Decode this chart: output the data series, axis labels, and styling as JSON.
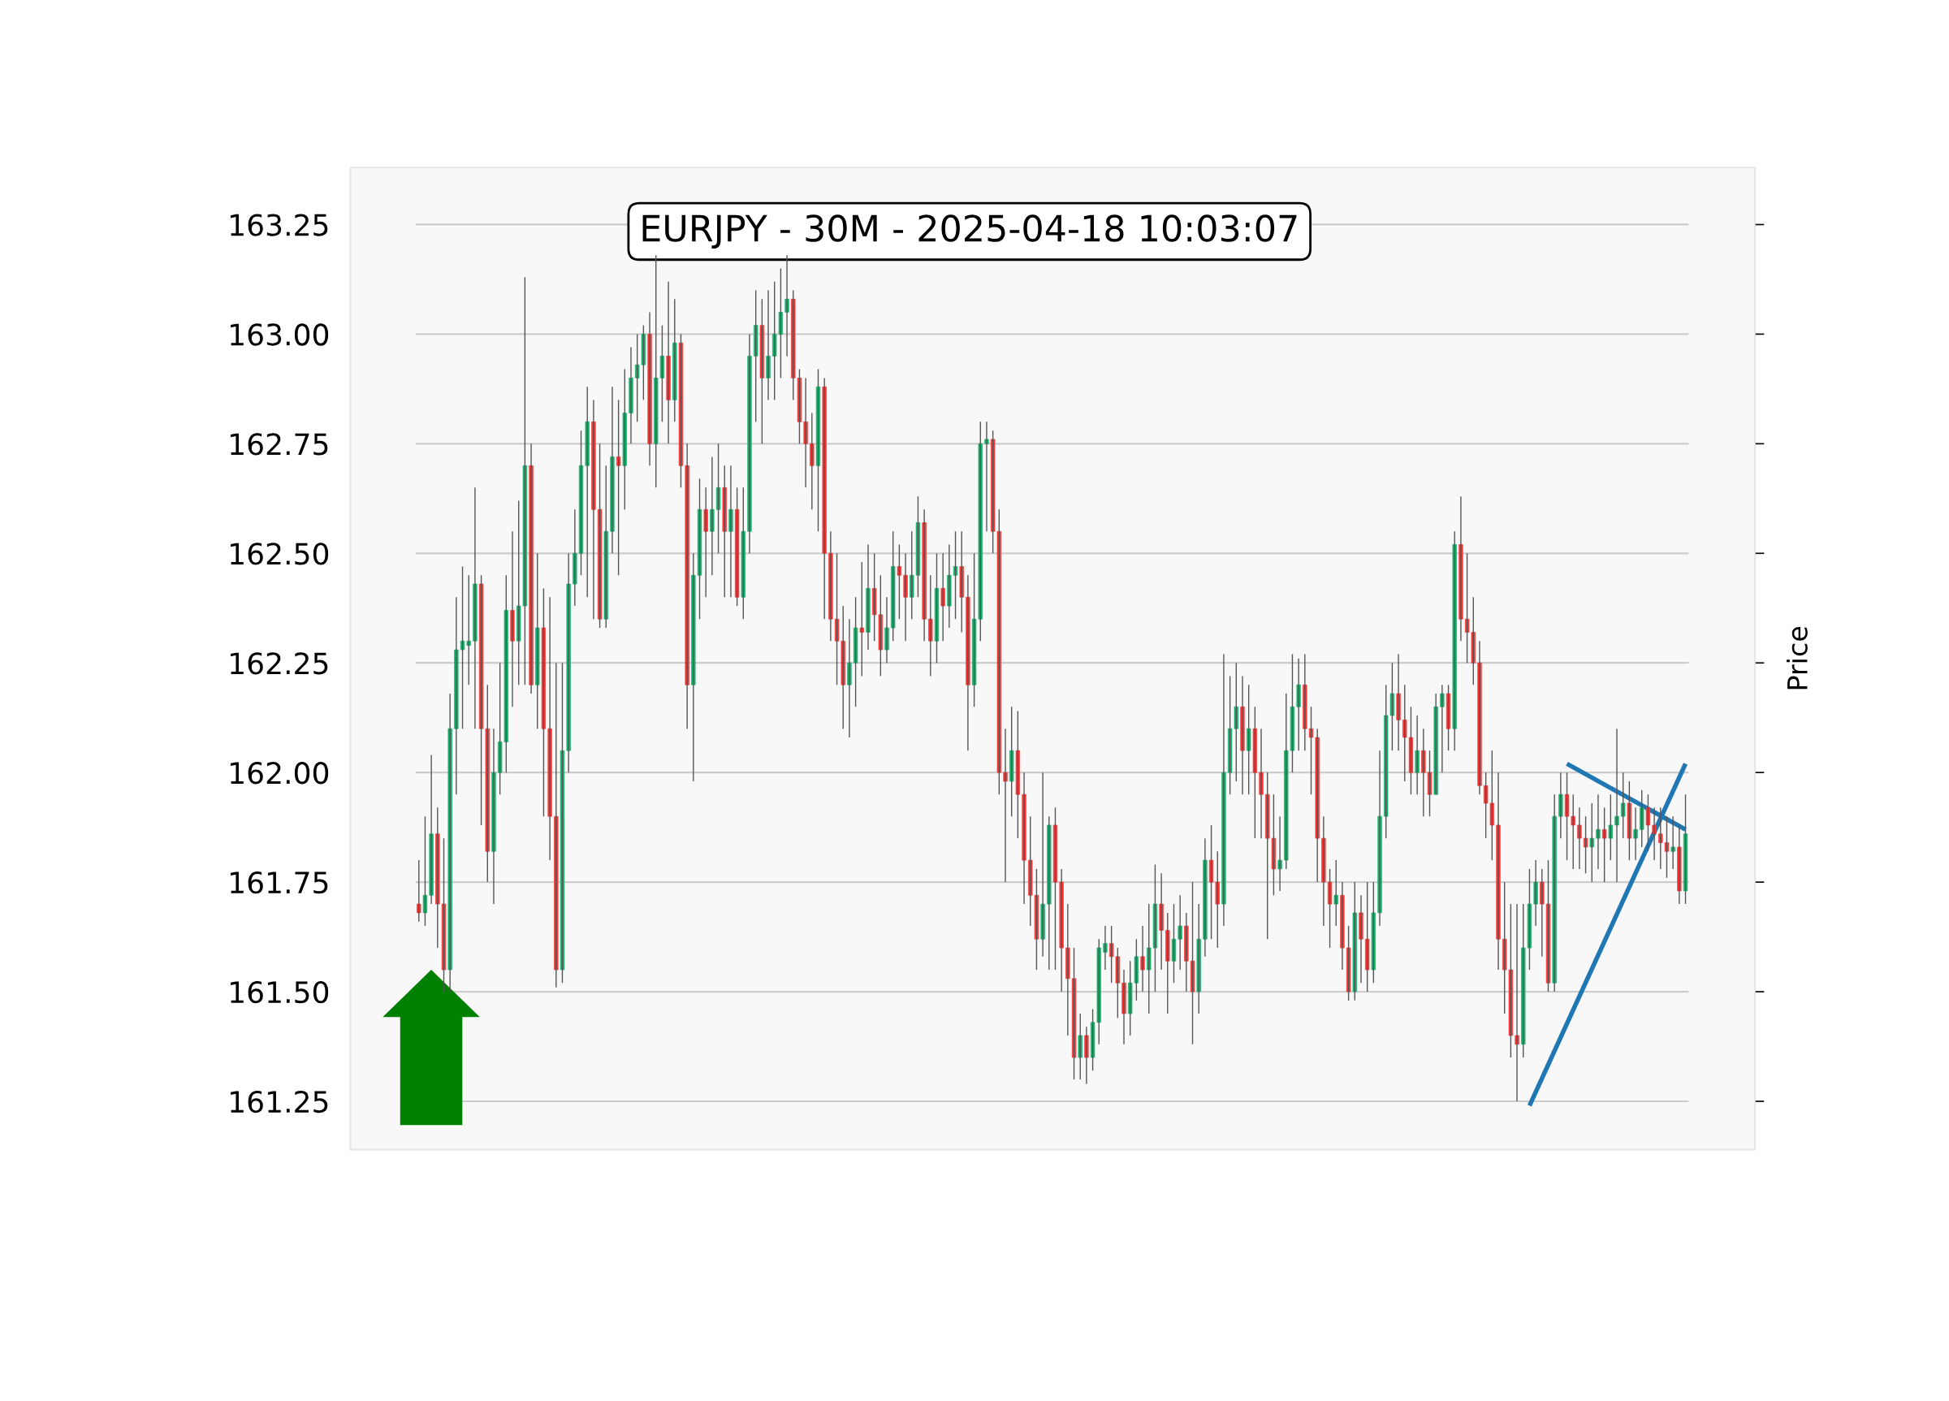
{
  "chart_data": {
    "type": "candlestick",
    "title": "EURJPY - 30M - 2025-04-18 10:03:07",
    "ylabel": "Price",
    "ylim": [
      161.14,
      163.38
    ],
    "yticks": [
      {
        "value": 161.25,
        "label": "161.25"
      },
      {
        "value": 161.5,
        "label": "161.50"
      },
      {
        "value": 161.75,
        "label": "161.75"
      },
      {
        "value": 162.0,
        "label": "162.00"
      },
      {
        "value": 162.25,
        "label": "162.25"
      },
      {
        "value": 162.5,
        "label": "162.50"
      },
      {
        "value": 162.75,
        "label": "162.75"
      },
      {
        "value": 163.0,
        "label": "163.00"
      },
      {
        "value": 163.25,
        "label": "163.25"
      }
    ],
    "grid": "y",
    "tick_labels": "y",
    "colors": [
      "#ff3333",
      "#12b36b",
      "#12b36b",
      "#ff3333",
      "#ff3333",
      "#12b36b",
      "#12b36b",
      "#12b36b",
      "#12b36b",
      "#12b36b",
      "#ff3333",
      "#ff3333",
      "#12b36b",
      "#12b36b",
      "#12b36b",
      "#ff3333",
      "#12b36b",
      "#12b36b",
      "#ff3333",
      "#12b36b",
      "#ff3333",
      "#ff3333",
      "#ff3333",
      "#12b36b",
      "#12b36b",
      "#12b36b",
      "#12b36b",
      "#12b36b",
      "#ff3333",
      "#ff3333",
      "#12b36b",
      "#12b36b",
      "#ff3333",
      "#12b36b",
      "#12b36b",
      "#12b36b",
      "#12b36b",
      "#ff3333",
      "#12b36b",
      "#12b36b",
      "#ff3333",
      "#12b36b",
      "#ff3333",
      "#ff3333",
      "#12b36b",
      "#12b36b",
      "#ff3333",
      "#12b36b",
      "#12b36b",
      "#ff3333",
      "#12b36b",
      "#ff3333",
      "#12b36b",
      "#12b36b",
      "#12b36b",
      "#ff3333",
      "#12b36b",
      "#12b36b",
      "#12b36b",
      "#12b36b",
      "#ff3333",
      "#ff3333",
      "#ff3333",
      "#ff3333",
      "#12b36b",
      "#ff3333",
      "#ff3333",
      "#ff3333",
      "#ff3333",
      "#12b36b",
      "#12b36b",
      "#ff3333",
      "#12b36b",
      "#ff3333",
      "#ff3333",
      "#12b36b",
      "#12b36b",
      "#ff3333",
      "#ff3333",
      "#12b36b",
      "#12b36b",
      "#ff3333",
      "#ff3333",
      "#12b36b",
      "#ff3333",
      "#12b36b",
      "#12b36b",
      "#ff3333",
      "#ff3333",
      "#12b36b",
      "#12b36b",
      "#12b36b",
      "#ff3333",
      "#ff3333",
      "#ff3333",
      "#12b36b",
      "#ff3333",
      "#ff3333",
      "#ff3333",
      "#ff3333",
      "#12b36b",
      "#12b36b",
      "#ff3333",
      "#ff3333",
      "#ff3333",
      "#ff3333",
      "#12b36b",
      "#ff3333",
      "#12b36b",
      "#12b36b",
      "#12b36b",
      "#ff3333",
      "#ff3333",
      "#ff3333",
      "#12b36b",
      "#12b36b",
      "#ff3333",
      "#12b36b",
      "#12b36b",
      "#ff3333",
      "#ff3333",
      "#12b36b",
      "#12b36b",
      "#ff3333",
      "#ff3333",
      "#12b36b",
      "#12b36b",
      "#ff3333",
      "#ff3333",
      "#12b36b",
      "#12b36b",
      "#12b36b",
      "#ff3333",
      "#12b36b",
      "#ff3333",
      "#ff3333",
      "#ff3333",
      "#ff3333",
      "#12b36b",
      "#12b36b",
      "#12b36b",
      "#12b36b",
      "#ff3333",
      "#ff3333",
      "#ff3333",
      "#ff3333",
      "#ff3333",
      "#12b36b",
      "#ff3333",
      "#ff3333",
      "#12b36b",
      "#ff3333",
      "#ff3333",
      "#12b36b",
      "#12b36b",
      "#12b36b",
      "#12b36b",
      "#ff3333",
      "#ff3333",
      "#ff3333",
      "#12b36b",
      "#ff3333",
      "#ff3333",
      "#12b36b",
      "#12b36b",
      "#ff3333",
      "#12b36b",
      "#ff3333",
      "#ff3333",
      "#ff3333",
      "#ff3333",
      "#ff3333",
      "#ff3333",
      "#ff3333",
      "#ff3333",
      "#ff3333",
      "#ff3333",
      "#12b36b",
      "#12b36b",
      "#12b36b",
      "#ff3333",
      "#ff3333",
      "#12b36b",
      "#12b36b",
      "#ff3333",
      "#ff3333",
      "#ff3333",
      "#ff3333",
      "#12b36b",
      "#12b36b",
      "#ff3333",
      "#12b36b",
      "#12b36b",
      "#12b36b",
      "#ff3333",
      "#12b36b",
      "#12b36b",
      "#ff3333",
      "#ff3333",
      "#ff3333",
      "#ff3333",
      "#12b36b",
      "#ff3333",
      "#12b36b"
    ],
    "categories": [
      null,
      null,
      null,
      null,
      null,
      null,
      null,
      null,
      null,
      null,
      null,
      null,
      null,
      null,
      null,
      null,
      null,
      null,
      null,
      null,
      null,
      null,
      null,
      null,
      null,
      null,
      null,
      null,
      null,
      null,
      null,
      null,
      null,
      null,
      null,
      null,
      null,
      null,
      null,
      null,
      null,
      null,
      null,
      null,
      null,
      null,
      null,
      null,
      null,
      null,
      null,
      null,
      null,
      null,
      null,
      null,
      null,
      null,
      null,
      null,
      null,
      null,
      null,
      null,
      null,
      null,
      null,
      null,
      null,
      null,
      null,
      null,
      null,
      null,
      null,
      null,
      null,
      null,
      null,
      null,
      null,
      null,
      null,
      null,
      null,
      null,
      null,
      null,
      null,
      null,
      null,
      null,
      null,
      null,
      null,
      null,
      null,
      null,
      null,
      null,
      null,
      null,
      null,
      null,
      null,
      null,
      null,
      null,
      null,
      null,
      null,
      null,
      null,
      null,
      null,
      null,
      null,
      null,
      null,
      null,
      null,
      null,
      null,
      null,
      null,
      null,
      null,
      null,
      null,
      null,
      null,
      null,
      null,
      null,
      null,
      null,
      null,
      null,
      null,
      null,
      null,
      null,
      null,
      null,
      null,
      null,
      null,
      null,
      null,
      null,
      null,
      null,
      null,
      null,
      null,
      null,
      null,
      null,
      null,
      null,
      null,
      null,
      null,
      null,
      null,
      null,
      null,
      null,
      null,
      null,
      null,
      null,
      null,
      null,
      null,
      null,
      null,
      null,
      null,
      null,
      null,
      null,
      null,
      null,
      null,
      null,
      null,
      null,
      null,
      null,
      null,
      null,
      null,
      null,
      null,
      null,
      null,
      null,
      null,
      null,
      null,
      null,
      null,
      null
    ],
    "ohlc": [
      [
        161.7,
        161.8,
        161.66,
        161.68
      ],
      [
        161.68,
        161.9,
        161.65,
        161.72
      ],
      [
        161.72,
        162.04,
        161.7,
        161.86
      ],
      [
        161.86,
        161.92,
        161.6,
        161.7
      ],
      [
        161.7,
        161.85,
        161.5,
        161.55
      ],
      [
        161.55,
        162.18,
        161.5,
        162.1
      ],
      [
        162.1,
        162.4,
        161.95,
        162.28
      ],
      [
        162.28,
        162.47,
        162.1,
        162.3
      ],
      [
        162.29,
        162.45,
        162.2,
        162.3
      ],
      [
        162.3,
        162.65,
        162.1,
        162.43
      ],
      [
        162.43,
        162.45,
        161.88,
        162.1
      ],
      [
        162.1,
        162.2,
        161.75,
        161.82
      ],
      [
        161.82,
        162.1,
        161.7,
        162.0
      ],
      [
        162.0,
        162.25,
        161.95,
        162.07
      ],
      [
        162.07,
        162.45,
        162.0,
        162.37
      ],
      [
        162.37,
        162.55,
        162.15,
        162.3
      ],
      [
        162.3,
        162.62,
        162.2,
        162.38
      ],
      [
        162.38,
        163.13,
        162.2,
        162.7
      ],
      [
        162.7,
        162.75,
        162.18,
        162.2
      ],
      [
        162.2,
        162.5,
        162.1,
        162.33
      ],
      [
        162.33,
        162.42,
        161.9,
        162.1
      ],
      [
        162.1,
        162.4,
        161.8,
        161.9
      ],
      [
        161.9,
        162.25,
        161.51,
        161.55
      ],
      [
        161.55,
        162.25,
        161.52,
        162.05
      ],
      [
        162.05,
        162.5,
        162.0,
        162.43
      ],
      [
        162.43,
        162.6,
        162.38,
        162.5
      ],
      [
        162.5,
        162.78,
        162.45,
        162.7
      ],
      [
        162.7,
        162.88,
        162.4,
        162.8
      ],
      [
        162.8,
        162.85,
        162.35,
        162.6
      ],
      [
        162.6,
        162.75,
        162.33,
        162.35
      ],
      [
        162.35,
        162.7,
        162.33,
        162.55
      ],
      [
        162.55,
        162.88,
        162.5,
        162.72
      ],
      [
        162.72,
        162.85,
        162.45,
        162.7
      ],
      [
        162.7,
        162.92,
        162.6,
        162.82
      ],
      [
        162.82,
        162.97,
        162.75,
        162.9
      ],
      [
        162.9,
        163.0,
        162.8,
        162.93
      ],
      [
        162.93,
        163.02,
        162.85,
        163.0
      ],
      [
        163.0,
        163.05,
        162.7,
        162.75
      ],
      [
        162.75,
        163.18,
        162.65,
        162.9
      ],
      [
        162.9,
        163.02,
        162.8,
        162.95
      ],
      [
        162.95,
        163.12,
        162.75,
        162.85
      ],
      [
        162.85,
        163.08,
        162.8,
        162.98
      ],
      [
        162.98,
        163.0,
        162.65,
        162.7
      ],
      [
        162.7,
        162.75,
        162.1,
        162.2
      ],
      [
        162.2,
        162.5,
        161.98,
        162.45
      ],
      [
        162.45,
        162.67,
        162.35,
        162.6
      ],
      [
        162.6,
        162.65,
        162.4,
        162.55
      ],
      [
        162.55,
        162.72,
        162.45,
        162.6
      ],
      [
        162.6,
        162.75,
        162.5,
        162.65
      ],
      [
        162.65,
        162.7,
        162.4,
        162.55
      ],
      [
        162.55,
        162.7,
        162.4,
        162.6
      ],
      [
        162.6,
        162.65,
        162.38,
        162.4
      ],
      [
        162.4,
        162.65,
        162.35,
        162.55
      ],
      [
        162.55,
        163.0,
        162.5,
        162.95
      ],
      [
        162.95,
        163.1,
        162.8,
        163.02
      ],
      [
        163.02,
        163.08,
        162.75,
        162.9
      ],
      [
        162.9,
        163.1,
        162.85,
        162.95
      ],
      [
        162.95,
        163.12,
        162.85,
        163.0
      ],
      [
        163.0,
        163.15,
        162.9,
        163.05
      ],
      [
        163.05,
        163.18,
        162.95,
        163.08
      ],
      [
        163.08,
        163.1,
        162.85,
        162.9
      ],
      [
        162.9,
        162.92,
        162.75,
        162.8
      ],
      [
        162.8,
        162.9,
        162.65,
        162.75
      ],
      [
        162.75,
        162.82,
        162.6,
        162.7
      ],
      [
        162.7,
        162.92,
        162.55,
        162.88
      ],
      [
        162.88,
        162.9,
        162.35,
        162.5
      ],
      [
        162.5,
        162.55,
        162.3,
        162.35
      ],
      [
        162.35,
        162.5,
        162.2,
        162.3
      ],
      [
        162.3,
        162.38,
        162.1,
        162.2
      ],
      [
        162.2,
        162.35,
        162.08,
        162.25
      ],
      [
        162.25,
        162.4,
        162.15,
        162.33
      ],
      [
        162.33,
        162.48,
        162.22,
        162.32
      ],
      [
        162.32,
        162.52,
        162.28,
        162.42
      ],
      [
        162.42,
        162.5,
        162.3,
        162.36
      ],
      [
        162.36,
        162.45,
        162.22,
        162.28
      ],
      [
        162.28,
        162.4,
        162.25,
        162.33
      ],
      [
        162.33,
        162.55,
        162.3,
        162.47
      ],
      [
        162.47,
        162.52,
        162.35,
        162.45
      ],
      [
        162.45,
        162.5,
        162.3,
        162.4
      ],
      [
        162.4,
        162.55,
        162.35,
        162.45
      ],
      [
        162.45,
        162.63,
        162.4,
        162.57
      ],
      [
        162.57,
        162.6,
        162.3,
        162.35
      ],
      [
        162.35,
        162.45,
        162.22,
        162.3
      ],
      [
        162.3,
        162.5,
        162.25,
        162.42
      ],
      [
        162.42,
        162.5,
        162.3,
        162.38
      ],
      [
        162.38,
        162.52,
        162.33,
        162.45
      ],
      [
        162.45,
        162.55,
        162.35,
        162.47
      ],
      [
        162.47,
        162.55,
        162.32,
        162.4
      ],
      [
        162.4,
        162.45,
        162.05,
        162.2
      ],
      [
        162.2,
        162.5,
        162.15,
        162.35
      ],
      [
        162.35,
        162.8,
        162.3,
        162.75
      ],
      [
        162.75,
        162.8,
        162.55,
        162.76
      ],
      [
        162.76,
        162.78,
        162.5,
        162.55
      ],
      [
        162.55,
        162.6,
        161.95,
        162.0
      ],
      [
        162.0,
        162.1,
        161.75,
        161.98
      ],
      [
        161.98,
        162.15,
        161.9,
        162.05
      ],
      [
        162.05,
        162.14,
        161.85,
        161.95
      ],
      [
        161.95,
        162.0,
        161.7,
        161.8
      ],
      [
        161.8,
        161.9,
        161.65,
        161.72
      ],
      [
        161.72,
        161.78,
        161.55,
        161.62
      ],
      [
        161.62,
        162.0,
        161.58,
        161.7
      ],
      [
        161.7,
        161.9,
        161.55,
        161.88
      ],
      [
        161.88,
        161.92,
        161.55,
        161.75
      ],
      [
        161.75,
        161.78,
        161.5,
        161.6
      ],
      [
        161.6,
        161.7,
        161.4,
        161.53
      ],
      [
        161.53,
        161.6,
        161.3,
        161.35
      ],
      [
        161.35,
        161.45,
        161.3,
        161.4
      ],
      [
        161.4,
        161.42,
        161.29,
        161.35
      ],
      [
        161.35,
        161.46,
        161.32,
        161.43
      ],
      [
        161.43,
        161.62,
        161.38,
        161.6
      ],
      [
        161.59,
        161.65,
        161.55,
        161.61
      ],
      [
        161.61,
        161.65,
        161.52,
        161.58
      ],
      [
        161.58,
        161.6,
        161.44,
        161.52
      ],
      [
        161.52,
        161.55,
        161.38,
        161.45
      ],
      [
        161.45,
        161.57,
        161.4,
        161.52
      ],
      [
        161.52,
        161.62,
        161.48,
        161.58
      ],
      [
        161.58,
        161.65,
        161.5,
        161.55
      ],
      [
        161.55,
        161.7,
        161.45,
        161.6
      ],
      [
        161.6,
        161.79,
        161.5,
        161.7
      ],
      [
        161.7,
        161.77,
        161.55,
        161.64
      ],
      [
        161.64,
        161.68,
        161.45,
        161.57
      ],
      [
        161.57,
        161.7,
        161.52,
        161.62
      ],
      [
        161.62,
        161.72,
        161.55,
        161.65
      ],
      [
        161.65,
        161.68,
        161.5,
        161.57
      ],
      [
        161.57,
        161.75,
        161.38,
        161.5
      ],
      [
        161.5,
        161.7,
        161.45,
        161.62
      ],
      [
        161.62,
        161.85,
        161.58,
        161.8
      ],
      [
        161.8,
        161.88,
        161.62,
        161.75
      ],
      [
        161.75,
        161.82,
        161.6,
        161.7
      ],
      [
        161.7,
        162.27,
        161.65,
        162.0
      ],
      [
        162.0,
        162.22,
        161.95,
        162.1
      ],
      [
        162.1,
        162.25,
        161.98,
        162.15
      ],
      [
        162.15,
        162.22,
        161.95,
        162.05
      ],
      [
        162.05,
        162.2,
        161.95,
        162.1
      ],
      [
        162.1,
        162.15,
        161.85,
        162.0
      ],
      [
        162.0,
        162.1,
        161.85,
        161.95
      ],
      [
        161.95,
        162.0,
        161.62,
        161.85
      ],
      [
        161.85,
        161.95,
        161.72,
        161.78
      ],
      [
        161.78,
        161.9,
        161.73,
        161.8
      ],
      [
        161.8,
        162.18,
        161.78,
        162.05
      ],
      [
        162.05,
        162.27,
        162.0,
        162.15
      ],
      [
        162.15,
        162.26,
        162.05,
        162.2
      ],
      [
        162.2,
        162.27,
        162.05,
        162.1
      ],
      [
        162.1,
        162.15,
        161.95,
        162.08
      ],
      [
        162.08,
        162.1,
        161.75,
        161.85
      ],
      [
        161.85,
        161.9,
        161.65,
        161.75
      ],
      [
        161.75,
        161.78,
        161.6,
        161.7
      ],
      [
        161.7,
        161.8,
        161.65,
        161.72
      ],
      [
        161.72,
        161.75,
        161.55,
        161.6
      ],
      [
        161.6,
        161.65,
        161.48,
        161.5
      ],
      [
        161.5,
        161.75,
        161.48,
        161.68
      ],
      [
        161.68,
        161.72,
        161.52,
        161.62
      ],
      [
        161.62,
        161.75,
        161.5,
        161.55
      ],
      [
        161.55,
        161.75,
        161.52,
        161.68
      ],
      [
        161.68,
        162.05,
        161.65,
        161.9
      ],
      [
        161.9,
        162.2,
        161.85,
        162.13
      ],
      [
        162.13,
        162.25,
        162.05,
        162.18
      ],
      [
        162.18,
        162.27,
        162.05,
        162.12
      ],
      [
        162.12,
        162.2,
        161.98,
        162.08
      ],
      [
        162.08,
        162.15,
        161.95,
        162.0
      ],
      [
        162.0,
        162.13,
        161.95,
        162.05
      ],
      [
        162.05,
        162.1,
        161.9,
        162.0
      ],
      [
        162.0,
        162.05,
        161.9,
        161.95
      ],
      [
        161.95,
        162.18,
        161.95,
        162.15
      ],
      [
        162.15,
        162.2,
        162.0,
        162.18
      ],
      [
        162.18,
        162.2,
        162.05,
        162.1
      ],
      [
        162.1,
        162.55,
        162.05,
        162.52
      ],
      [
        162.52,
        162.63,
        162.3,
        162.35
      ],
      [
        162.35,
        162.5,
        162.25,
        162.32
      ],
      [
        162.32,
        162.4,
        162.2,
        162.25
      ],
      [
        162.25,
        162.3,
        161.95,
        161.97
      ],
      [
        161.97,
        162.0,
        161.85,
        161.93
      ],
      [
        161.93,
        162.05,
        161.8,
        161.88
      ],
      [
        161.88,
        162.0,
        161.55,
        161.62
      ],
      [
        161.62,
        161.75,
        161.45,
        161.55
      ],
      [
        161.55,
        161.7,
        161.35,
        161.4
      ],
      [
        161.4,
        161.7,
        161.25,
        161.38
      ],
      [
        161.38,
        161.7,
        161.35,
        161.6
      ],
      [
        161.6,
        161.78,
        161.55,
        161.7
      ],
      [
        161.7,
        161.8,
        161.65,
        161.75
      ],
      [
        161.75,
        161.78,
        161.58,
        161.7
      ],
      [
        161.7,
        161.8,
        161.5,
        161.52
      ],
      [
        161.52,
        161.95,
        161.5,
        161.9
      ],
      [
        161.9,
        162.0,
        161.85,
        161.95
      ],
      [
        161.95,
        162.0,
        161.8,
        161.9
      ],
      [
        161.9,
        161.95,
        161.78,
        161.88
      ],
      [
        161.88,
        161.92,
        161.78,
        161.85
      ],
      [
        161.85,
        161.9,
        161.77,
        161.83
      ],
      [
        161.83,
        161.93,
        161.75,
        161.85
      ],
      [
        161.85,
        161.95,
        161.78,
        161.87
      ],
      [
        161.87,
        161.92,
        161.75,
        161.85
      ],
      [
        161.85,
        161.95,
        161.8,
        161.88
      ],
      [
        161.88,
        162.1,
        161.75,
        161.9
      ],
      [
        161.9,
        162.0,
        161.85,
        161.93
      ],
      [
        161.93,
        161.98,
        161.8,
        161.85
      ],
      [
        161.85,
        161.92,
        161.8,
        161.87
      ],
      [
        161.87,
        161.96,
        161.83,
        161.92
      ],
      [
        161.92,
        161.95,
        161.82,
        161.88
      ],
      [
        161.88,
        161.92,
        161.8,
        161.86
      ],
      [
        161.86,
        161.92,
        161.78,
        161.84
      ],
      [
        161.84,
        161.9,
        161.76,
        161.82
      ],
      [
        161.82,
        161.9,
        161.78,
        161.83
      ],
      [
        161.83,
        161.88,
        161.7,
        161.73
      ],
      [
        161.73,
        161.95,
        161.7,
        161.86
      ]
    ],
    "series": [
      {
        "type": "line",
        "color": "#1f77b4",
        "values": [
          null,
          null,
          null,
          null,
          null,
          null,
          null,
          null,
          null,
          null,
          null,
          null,
          null,
          null,
          null,
          null,
          null,
          null,
          null,
          null,
          null,
          null,
          null,
          null,
          null,
          null,
          null,
          null,
          null,
          null,
          null,
          null,
          null,
          null,
          null,
          null,
          null,
          null,
          null,
          null,
          null,
          null,
          null,
          null,
          null,
          null,
          null,
          null,
          null,
          null,
          null,
          null,
          null,
          null,
          null,
          null,
          null,
          null,
          null,
          null,
          null,
          null,
          null,
          null,
          null,
          null,
          null,
          null,
          null,
          null,
          null,
          null,
          null,
          null,
          null,
          null,
          null,
          null,
          null,
          null,
          null,
          null,
          null,
          null,
          null,
          null,
          null,
          null,
          null,
          null,
          null,
          null,
          null,
          null,
          null,
          null,
          null,
          null,
          null,
          null,
          null,
          null,
          null,
          null,
          null,
          null,
          null,
          null,
          null,
          null,
          null,
          null,
          null,
          null,
          null,
          null,
          null,
          null,
          null,
          null,
          null,
          null,
          null,
          null,
          null,
          null,
          null,
          null,
          null,
          null,
          null,
          null,
          null,
          null,
          null,
          null,
          null,
          null,
          null,
          null,
          null,
          null,
          null,
          null,
          null,
          null,
          null,
          null,
          null,
          null,
          null,
          null,
          null,
          null,
          null,
          null,
          null,
          null,
          null,
          null,
          null,
          null,
          null,
          null,
          null,
          null,
          null,
          null,
          null,
          null,
          null,
          null,
          null,
          null,
          null,
          null,
          null,
          null,
          161.24,
          null,
          null,
          null,
          null,
          null,
          null,
          null,
          null,
          null,
          null,
          null,
          null,
          null,
          null,
          null,
          null,
          null,
          null,
          null,
          null,
          null,
          null,
          null,
          null,
          162.02
        ]
      },
      {
        "type": "line",
        "color": "#1f77b4",
        "values": [
          null,
          null,
          null,
          null,
          null,
          null,
          null,
          null,
          null,
          null,
          null,
          null,
          null,
          null,
          null,
          null,
          null,
          null,
          null,
          null,
          null,
          null,
          null,
          null,
          null,
          null,
          null,
          null,
          null,
          null,
          null,
          null,
          null,
          null,
          null,
          null,
          null,
          null,
          null,
          null,
          null,
          null,
          null,
          null,
          null,
          null,
          null,
          null,
          null,
          null,
          null,
          null,
          null,
          null,
          null,
          null,
          null,
          null,
          null,
          null,
          null,
          null,
          null,
          null,
          null,
          null,
          null,
          null,
          null,
          null,
          null,
          null,
          null,
          null,
          null,
          null,
          null,
          null,
          null,
          null,
          null,
          null,
          null,
          null,
          null,
          null,
          null,
          null,
          null,
          null,
          null,
          null,
          null,
          null,
          null,
          null,
          null,
          null,
          null,
          null,
          null,
          null,
          null,
          null,
          null,
          null,
          null,
          null,
          null,
          null,
          null,
          null,
          null,
          null,
          null,
          null,
          null,
          null,
          null,
          null,
          null,
          null,
          null,
          null,
          null,
          null,
          null,
          null,
          null,
          null,
          null,
          null,
          null,
          null,
          null,
          null,
          null,
          null,
          null,
          null,
          null,
          null,
          null,
          null,
          null,
          null,
          null,
          null,
          null,
          null,
          null,
          null,
          null,
          null,
          null,
          null,
          null,
          null,
          null,
          null,
          null,
          null,
          null,
          null,
          null,
          null,
          null,
          null,
          null,
          null,
          null,
          null,
          null,
          null,
          null,
          null,
          null,
          null,
          null,
          null,
          null,
          null,
          null,
          null,
          162.02,
          null,
          null,
          null,
          null,
          null,
          null,
          null,
          null,
          null,
          null,
          null,
          null,
          null,
          null,
          null,
          null,
          null,
          null,
          161.87
        ]
      }
    ]
  }
}
